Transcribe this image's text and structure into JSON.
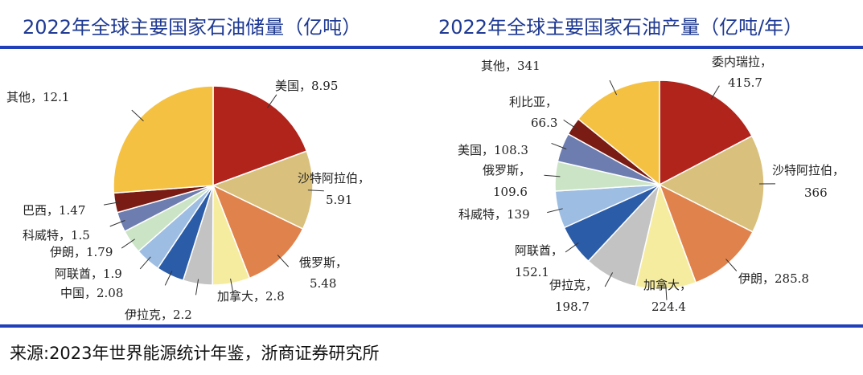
{
  "chart_data": [
    {
      "type": "pie",
      "title": "2022年全球主要国家石油储量（亿吨）",
      "unit": "亿吨",
      "categories": [
        "美国",
        "沙特阿拉伯",
        "俄罗斯",
        "加拿大",
        "伊拉克",
        "中国",
        "阿联酋",
        "伊朗",
        "科威特",
        "巴西",
        "其他"
      ],
      "values": [
        8.95,
        5.91,
        5.48,
        2.8,
        2.2,
        2.08,
        1.9,
        1.79,
        1.5,
        1.47,
        12.1
      ],
      "value_labels": [
        "8.95",
        "5.91",
        "5.48",
        "2.8",
        "2.2",
        "2.08",
        "1.9",
        "1.79",
        "1.5",
        "1.47",
        "12.1"
      ],
      "colors": [
        "#b0241c",
        "#d9c07c",
        "#e0824c",
        "#f6eca0",
        "#c3c3c3",
        "#2b5ca8",
        "#9dbde2",
        "#cbe4c6",
        "#6e7db0",
        "#7a1c14",
        "#f5c143"
      ],
      "start": "12 o'clock, clockwise"
    },
    {
      "type": "pie",
      "title": "2022年全球主要国家石油产量（亿吨/年）",
      "unit": "亿吨/年",
      "categories": [
        "委内瑞拉",
        "沙特阿拉伯",
        "伊朗",
        "加拿大",
        "伊拉克",
        "阿联酋",
        "科威特",
        "俄罗斯",
        "美国",
        "利比亚",
        "其他"
      ],
      "values": [
        415.7,
        366,
        285.8,
        224.4,
        198.7,
        152.1,
        139,
        109.6,
        108.3,
        66.3,
        341
      ],
      "value_labels": [
        "415.7",
        "366",
        "285.8",
        "224.4",
        "198.7",
        "152.1",
        "139",
        "109.6",
        "108.3",
        "66.3",
        "341"
      ],
      "colors": [
        "#b0241c",
        "#d9c07c",
        "#e0824c",
        "#f6eca0",
        "#c3c3c3",
        "#2b5ca8",
        "#9dbde2",
        "#cbe4c6",
        "#6e7db0",
        "#7a1c14",
        "#f5c143"
      ],
      "start": "12 o'clock, clockwise"
    }
  ],
  "source": "来源:2023年世界能源统计年鉴，浙商证券研究所"
}
